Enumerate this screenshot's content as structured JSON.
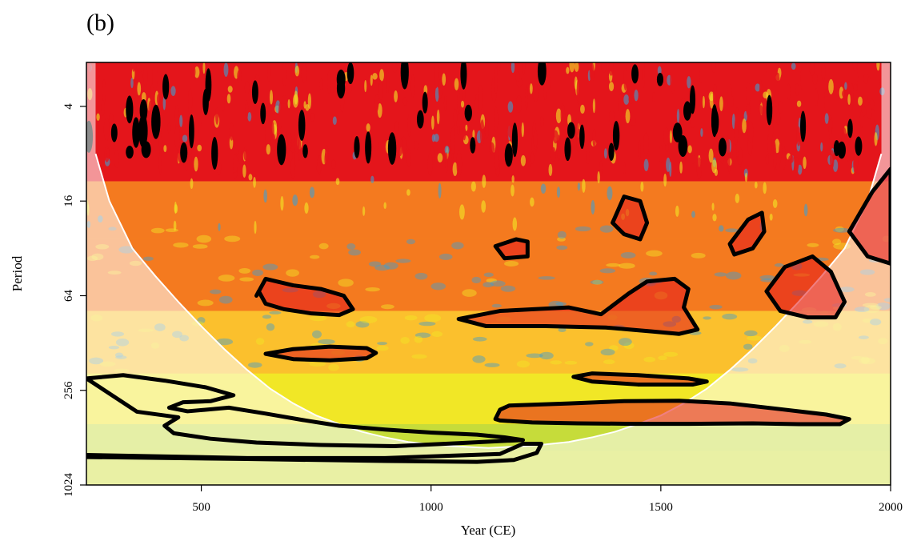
{
  "chart_data": {
    "type": "heatmap",
    "panel_label": "(b)",
    "title": "",
    "xlabel": "Year (CE)",
    "ylabel": "Period",
    "xlim": [
      250,
      2000
    ],
    "ylim": [
      2.1,
      1024
    ],
    "y_scale": "log2",
    "y_reversed": true,
    "x_ticks": [
      500,
      1000,
      1500,
      2000
    ],
    "x_tick_labels": [
      "500",
      "1000",
      "1500",
      "2000"
    ],
    "y_ticks": [
      4,
      16,
      64,
      256,
      1024
    ],
    "y_tick_labels": [
      "4",
      "16",
      "64",
      "256",
      "1024"
    ],
    "grid": false,
    "legend": "none",
    "colors": {
      "high_power": "#e4151b",
      "mid_high": "#f47a1f",
      "mid": "#fbc02d",
      "low_mid": "#f1e726",
      "low": "#c6dc3a",
      "lowest": "#3f9ed1",
      "contour": "#000000",
      "cone_of_influence": "#ffffff"
    },
    "significance_regions": [
      {
        "x": [
          620,
          640,
          700,
          760,
          810,
          830,
          800,
          740,
          680,
          640,
          625,
          620
        ],
        "y": [
          64,
          50,
          55,
          58,
          64,
          78,
          85,
          83,
          78,
          72,
          60,
          64
        ]
      },
      {
        "x": [
          640,
          700,
          780,
          860,
          880,
          860,
          780,
          700,
          640
        ],
        "y": [
          150,
          140,
          135,
          138,
          148,
          160,
          165,
          162,
          150
        ]
      },
      {
        "x": [
          1060,
          1150,
          1300,
          1370,
          1430,
          1470,
          1530,
          1560,
          1550,
          1580,
          1540,
          1480,
          1380,
          1250,
          1120,
          1060
        ],
        "y": [
          90,
          80,
          76,
          84,
          62,
          52,
          50,
          58,
          76,
          105,
          112,
          108,
          102,
          100,
          100,
          90
        ]
      },
      {
        "x": [
          1310,
          1350,
          1450,
          1560,
          1600,
          1570,
          1450,
          1350,
          1310
        ],
        "y": [
          210,
          200,
          205,
          215,
          225,
          235,
          235,
          225,
          210
        ]
      },
      {
        "x": [
          1140,
          1150,
          1170,
          1300,
          1420,
          1540,
          1650,
          1770,
          1860,
          1910,
          1890,
          1800,
          1700,
          1560,
          1440,
          1320,
          1220,
          1150,
          1140
        ],
        "y": [
          390,
          340,
          320,
          310,
          300,
          298,
          310,
          340,
          365,
          390,
          420,
          420,
          415,
          418,
          418,
          415,
          410,
          398,
          390
        ]
      },
      {
        "x": [
          1730,
          1770,
          1830,
          1870,
          1900,
          1880,
          1820,
          1760,
          1730
        ],
        "y": [
          60,
          42,
          36,
          45,
          70,
          88,
          88,
          80,
          60
        ]
      },
      {
        "x": [
          1650,
          1690,
          1720,
          1725,
          1700,
          1660,
          1650
        ],
        "y": [
          30,
          21,
          19,
          25,
          32,
          35,
          30
        ]
      },
      {
        "x": [
          1395,
          1420,
          1455,
          1470,
          1455,
          1420,
          1395
        ],
        "y": [
          22,
          15,
          16,
          22,
          28,
          26,
          22
        ]
      },
      {
        "x": [
          1140,
          1185,
          1210,
          1210,
          1160,
          1140
        ],
        "y": [
          31,
          28,
          29,
          36,
          37,
          31
        ]
      },
      {
        "x": [
          1910,
          1960,
          2000,
          2000,
          1950,
          1910
        ],
        "y": [
          25,
          14,
          10,
          40,
          36,
          25
        ]
      },
      {
        "x": [
          250,
          330,
          420,
          510,
          570,
          520,
          460,
          430,
          470,
          560,
          640,
          720,
          800,
          900,
          1000,
          1100,
          1160,
          1200,
          1060,
          920,
          760,
          620,
          520,
          440,
          420,
          450,
          360,
          250
        ],
        "y": [
          215,
          205,
          222,
          245,
          275,
          300,
          305,
          330,
          348,
          330,
          360,
          395,
          430,
          455,
          475,
          490,
          510,
          530,
          555,
          580,
          570,
          550,
          520,
          480,
          430,
          380,
          350,
          215
        ]
      },
      {
        "x": [
          250,
          600,
          900,
          1100,
          1180,
          1230,
          1240,
          1200,
          1150,
          900,
          600,
          250
        ],
        "y": [
          680,
          700,
          720,
          730,
          710,
          640,
          560,
          560,
          650,
          690,
          690,
          660
        ]
      }
    ],
    "cone_of_influence": {
      "x": [
        270,
        300,
        350,
        400,
        450,
        500,
        550,
        600,
        650,
        700,
        750,
        800,
        850,
        900,
        950,
        1000,
        1050,
        1100,
        1125,
        1150,
        1200,
        1250,
        1300,
        1350,
        1400,
        1450,
        1500,
        1550,
        1600,
        1650,
        1700,
        1750,
        1800,
        1850,
        1900,
        1950,
        1980
      ],
      "y": [
        8,
        16,
        32,
        48,
        70,
        100,
        140,
        190,
        250,
        310,
        370,
        420,
        470,
        510,
        545,
        565,
        580,
        590,
        595,
        590,
        580,
        565,
        545,
        510,
        470,
        420,
        370,
        310,
        250,
        190,
        140,
        100,
        70,
        48,
        32,
        16,
        8
      ]
    }
  }
}
